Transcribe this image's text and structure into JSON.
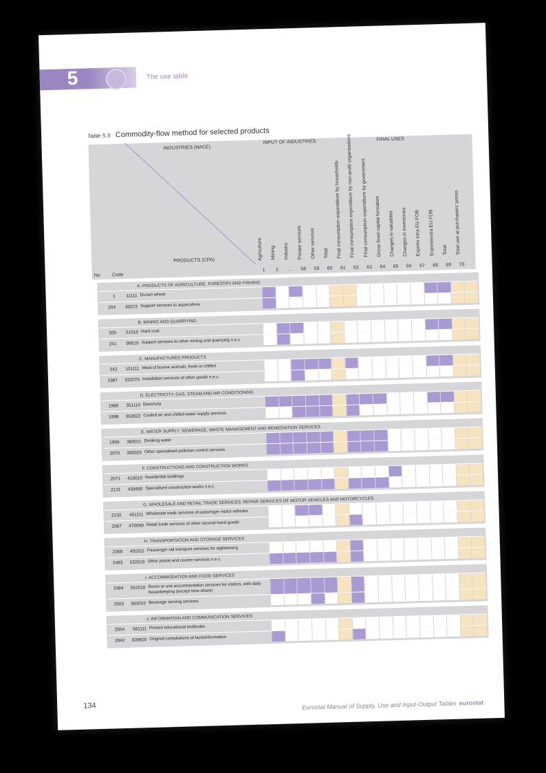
{
  "chapter": {
    "number": "5",
    "title": "The use table"
  },
  "table": {
    "id_label": "Table 5.3:",
    "caption": "Commodity-flow method for selected products"
  },
  "header": {
    "industries": "INDUSTRIES (NACE)",
    "products": "PRODUCTS (CPA)",
    "no": "No",
    "code": "Code",
    "input_group": "INPUT OF INDUSTRIES",
    "final_group": "FINAL USES",
    "columns": [
      {
        "label": "Agriculture",
        "num": "1"
      },
      {
        "label": "Mining",
        "num": "2"
      },
      {
        "label": "Industry",
        "num": "…"
      },
      {
        "label": "Private services",
        "num": "58"
      },
      {
        "label": "Other services",
        "num": "59"
      },
      {
        "label": "Total",
        "num": "60"
      },
      {
        "label": "Final consumption expenditure by households",
        "num": "61"
      },
      {
        "label": "Final consumption expenditure by non-profit organisations",
        "num": "62"
      },
      {
        "label": "Final consumption expenditure by government",
        "num": "63"
      },
      {
        "label": "Gross fixed capital formation",
        "num": "64"
      },
      {
        "label": "Changes in valuables",
        "num": "65"
      },
      {
        "label": "Changes in inventories",
        "num": "66"
      },
      {
        "label": "Exports intra EU FOB",
        "num": "67"
      },
      {
        "label": "Exportsextra EU FOB",
        "num": "68"
      },
      {
        "label": "Total",
        "num": "69"
      },
      {
        "label": "Total use at purchasers' prices",
        "num": "70"
      }
    ]
  },
  "sections": [
    {
      "title": "A. PRODUCTS OF AGRICULTURE, FORESTRY AND FISHING",
      "rows": [
        {
          "no": "1",
          "code": "11111",
          "desc": "Durum wheat",
          "cells": "pwpwwyywwwwwppyy"
        },
        {
          "no": "204",
          "code": "30072",
          "desc": "Support services to aquaculture",
          "cells": "pwwwwyywwwwwwwyy"
        }
      ]
    },
    {
      "title": "B. MINING AND QUARRYING",
      "rows": [
        {
          "no": "205",
          "code": "51010",
          "desc": "Hard coal",
          "cells": "wppwwywwwwwwppyy"
        },
        {
          "no": "241",
          "code": "99019",
          "desc": "Support services to other mining and quarrying n.e.c.",
          "cells": "wpwwwywwwwwwwwyy"
        }
      ]
    },
    {
      "title": "C. MANUFACTURED PRODUCTS",
      "rows": [
        {
          "no": "242",
          "code": "101111",
          "desc": "Meat of bovine animals, fresh or chilled",
          "cells": "wwpppypwwwwwppyy"
        },
        {
          "no": "1987",
          "code": "332070",
          "desc": "Installation services of other goods n.e.c.",
          "cells": "wwpwwywwwwwwwwyy"
        }
      ]
    },
    {
      "title": "D. ELECTRICITY, GAS, STEAM AND AIR CONDITIONING",
      "rows": [
        {
          "no": "1988",
          "code": "351110",
          "desc": "Electricity",
          "cells": "pppppypppwwwppyy"
        },
        {
          "no": "1998",
          "code": "353022",
          "desc": "Cooled air and chilled water supply services",
          "cells": "wwpppypwwwwwwwyy"
        }
      ]
    },
    {
      "title": "E. WATER SUPPLY; SEWERAGE, WASTE MANAGEMENT AND REMEDIATION SERVICES",
      "rows": [
        {
          "no": "1999",
          "code": "360011",
          "desc": "Drinking water",
          "cells": "pppppypppwwwwwyy"
        },
        {
          "no": "2070",
          "code": "390023",
          "desc": "Other specialised pollution control services",
          "cells": "pppppypppwwwwwyy"
        }
      ]
    },
    {
      "title": "F. CONSTRUCTIONS AND CONSTRUCTION WORKS",
      "rows": [
        {
          "no": "2071",
          "code": "410010",
          "desc": "Residential buildings",
          "cells": "wwwwwywwwpwwwwyy"
        },
        {
          "no": "2131",
          "code": "439990",
          "desc": "Specialised construction works n.e.c.",
          "cells": "pppppypppwwwwwyy"
        }
      ]
    },
    {
      "title": "G. WHOLESALE AND RETAIL TRADE SERVICES; REPAIR SERVICES OF MOTOR VEHICLES AND MOTORCYCLES",
      "rows": [
        {
          "no": "2132",
          "code": "451111",
          "desc": "Wholesale trade services of passenger motor vehicles",
          "cells": "wwppwywwwwwwwwyy"
        },
        {
          "no": "2367",
          "code": "470099",
          "desc": "Retail trade services of other second-hand goods",
          "cells": "wwwwwypwwwwwwwyy"
        }
      ]
    },
    {
      "title": "H. TRANSPORTATION AND STORAGE SERVICES",
      "rows": [
        {
          "no": "2368",
          "code": "491011",
          "desc": "Passenger rail transport services for sightseeing",
          "cells": "wwwwwypwwwwwwwyy"
        },
        {
          "no": "2483",
          "code": "532019",
          "desc": "Other postal and courier services n.e.c.",
          "cells": "pppppypwwwwwwwyy"
        }
      ]
    },
    {
      "title": "I. ACCOMMODATION AND FOOD SERVICES",
      "rows": [
        {
          "no": "2484",
          "code": "551010",
          "desc": "Room or unit accommodation services for visitors, with daily housekeeping (except time-share)",
          "cells": "pppppypwwwwwwwyy",
          "tall": true
        },
        {
          "no": "2503",
          "code": "563010",
          "desc": "Beverage serving services",
          "cells": "wwwpwypwwwwwwwyy"
        }
      ]
    },
    {
      "title": "J. INFORMATION AND COMMUNICATION SERVICES",
      "rows": [
        {
          "no": "2504",
          "code": "581111",
          "desc": "Printed educational textbooks",
          "cells": "wwwwwywwwwwwwwyy"
        },
        {
          "no": "2642",
          "code": "639920",
          "desc": "Original compilations of facts/information",
          "cells": "pwwwwypwwwwwwwyy"
        }
      ]
    }
  ],
  "footer": {
    "page": "134",
    "text": "Eurostat Manual of Supply, Use and Input-Output Tables",
    "brand": "eurostat"
  }
}
